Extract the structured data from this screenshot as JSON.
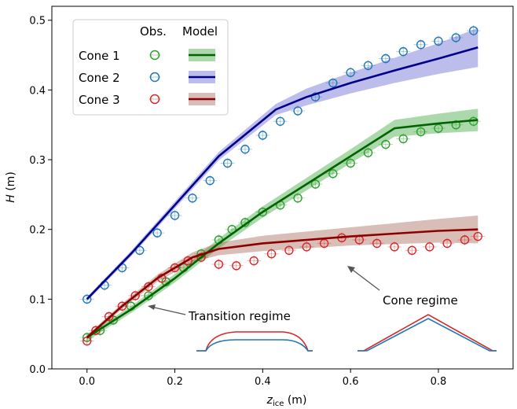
{
  "chart_data": {
    "type": "scatter",
    "xlabel": "z",
    "xlabel_sub": "ice",
    "xlabel_unit": "(m)",
    "ylabel": "H",
    "ylabel_unit": "(m)",
    "xlim": [
      -0.08,
      0.97
    ],
    "ylim": [
      0.0,
      0.52
    ],
    "xticks": [
      0.0,
      0.2,
      0.4,
      0.6,
      0.8
    ],
    "xtick_labels": [
      "0.0",
      "0.2",
      "0.4",
      "0.6",
      "0.8"
    ],
    "yticks": [
      0.0,
      0.1,
      0.2,
      0.3,
      0.4,
      0.5
    ],
    "ytick_labels": [
      "0.0",
      "0.1",
      "0.2",
      "0.3",
      "0.4",
      "0.5"
    ],
    "grid": false,
    "legend": {
      "position": "top-left",
      "col_headers": [
        "Obs.",
        "Model"
      ],
      "entries": [
        "Cone 1",
        "Cone 2",
        "Cone 3"
      ]
    },
    "series": [
      {
        "name": "Cone 1",
        "color": "#2ca02c",
        "model_color": "#006400",
        "band_color": "#2ca02c",
        "obs": [
          [
            0.0,
            0.045
          ],
          [
            0.03,
            0.055
          ],
          [
            0.06,
            0.07
          ],
          [
            0.1,
            0.09
          ],
          [
            0.14,
            0.105
          ],
          [
            0.18,
            0.125
          ],
          [
            0.22,
            0.145
          ],
          [
            0.26,
            0.165
          ],
          [
            0.3,
            0.185
          ],
          [
            0.33,
            0.2
          ],
          [
            0.36,
            0.21
          ],
          [
            0.4,
            0.225
          ],
          [
            0.44,
            0.235
          ],
          [
            0.48,
            0.245
          ],
          [
            0.52,
            0.265
          ],
          [
            0.56,
            0.28
          ],
          [
            0.6,
            0.295
          ],
          [
            0.64,
            0.31
          ],
          [
            0.68,
            0.322
          ],
          [
            0.72,
            0.33
          ],
          [
            0.76,
            0.34
          ],
          [
            0.8,
            0.345
          ],
          [
            0.84,
            0.35
          ],
          [
            0.88,
            0.355
          ]
        ],
        "model": [
          [
            0.0,
            0.045
          ],
          [
            0.1,
            0.085
          ],
          [
            0.2,
            0.13
          ],
          [
            0.3,
            0.18
          ],
          [
            0.4,
            0.225
          ],
          [
            0.5,
            0.265
          ],
          [
            0.6,
            0.305
          ],
          [
            0.7,
            0.345
          ],
          [
            0.8,
            0.352
          ],
          [
            0.89,
            0.357
          ]
        ],
        "band_halfwidth": [
          0.005,
          0.005,
          0.006,
          0.007,
          0.008,
          0.009,
          0.01,
          0.012,
          0.014,
          0.016
        ]
      },
      {
        "name": "Cone 2",
        "color": "#1f77b4",
        "model_color": "#00008b",
        "band_color": "#5a5acf",
        "obs": [
          [
            0.0,
            0.1
          ],
          [
            0.04,
            0.12
          ],
          [
            0.08,
            0.145
          ],
          [
            0.12,
            0.17
          ],
          [
            0.16,
            0.195
          ],
          [
            0.2,
            0.22
          ],
          [
            0.24,
            0.245
          ],
          [
            0.28,
            0.27
          ],
          [
            0.32,
            0.295
          ],
          [
            0.36,
            0.315
          ],
          [
            0.4,
            0.335
          ],
          [
            0.44,
            0.355
          ],
          [
            0.48,
            0.37
          ],
          [
            0.52,
            0.39
          ],
          [
            0.56,
            0.41
          ],
          [
            0.6,
            0.425
          ],
          [
            0.64,
            0.435
          ],
          [
            0.68,
            0.445
          ],
          [
            0.72,
            0.455
          ],
          [
            0.76,
            0.465
          ],
          [
            0.8,
            0.47
          ],
          [
            0.84,
            0.475
          ],
          [
            0.88,
            0.485
          ]
        ],
        "model": [
          [
            0.0,
            0.1
          ],
          [
            0.1,
            0.165
          ],
          [
            0.2,
            0.235
          ],
          [
            0.3,
            0.305
          ],
          [
            0.43,
            0.372
          ],
          [
            0.5,
            0.39
          ],
          [
            0.6,
            0.41
          ],
          [
            0.7,
            0.428
          ],
          [
            0.8,
            0.445
          ],
          [
            0.89,
            0.461
          ]
        ],
        "band_halfwidth": [
          0.003,
          0.004,
          0.005,
          0.006,
          0.008,
          0.012,
          0.015,
          0.018,
          0.022,
          0.028
        ]
      },
      {
        "name": "Cone 3",
        "color": "#d62728",
        "model_color": "#8b0000",
        "band_color": "#a05a4a",
        "obs": [
          [
            0.0,
            0.04
          ],
          [
            0.02,
            0.055
          ],
          [
            0.05,
            0.075
          ],
          [
            0.08,
            0.09
          ],
          [
            0.11,
            0.105
          ],
          [
            0.14,
            0.118
          ],
          [
            0.17,
            0.13
          ],
          [
            0.2,
            0.145
          ],
          [
            0.23,
            0.155
          ],
          [
            0.26,
            0.16
          ],
          [
            0.3,
            0.15
          ],
          [
            0.34,
            0.148
          ],
          [
            0.38,
            0.155
          ],
          [
            0.42,
            0.165
          ],
          [
            0.46,
            0.17
          ],
          [
            0.5,
            0.175
          ],
          [
            0.54,
            0.18
          ],
          [
            0.58,
            0.188
          ],
          [
            0.62,
            0.185
          ],
          [
            0.66,
            0.18
          ],
          [
            0.7,
            0.175
          ],
          [
            0.74,
            0.17
          ],
          [
            0.78,
            0.175
          ],
          [
            0.82,
            0.18
          ],
          [
            0.86,
            0.185
          ],
          [
            0.89,
            0.19
          ]
        ],
        "model": [
          [
            0.0,
            0.045
          ],
          [
            0.08,
            0.09
          ],
          [
            0.16,
            0.13
          ],
          [
            0.24,
            0.16
          ],
          [
            0.3,
            0.172
          ],
          [
            0.4,
            0.18
          ],
          [
            0.5,
            0.185
          ],
          [
            0.6,
            0.19
          ],
          [
            0.7,
            0.194
          ],
          [
            0.8,
            0.198
          ],
          [
            0.89,
            0.2
          ]
        ],
        "band_halfwidth": [
          0.003,
          0.004,
          0.005,
          0.007,
          0.009,
          0.011,
          0.012,
          0.013,
          0.015,
          0.017,
          0.02
        ]
      }
    ],
    "annotations": [
      {
        "text": "Transition regime",
        "target": [
          0.14,
          0.09
        ]
      },
      {
        "text": "Cone regime",
        "target": [
          0.58,
          0.15
        ]
      }
    ]
  }
}
